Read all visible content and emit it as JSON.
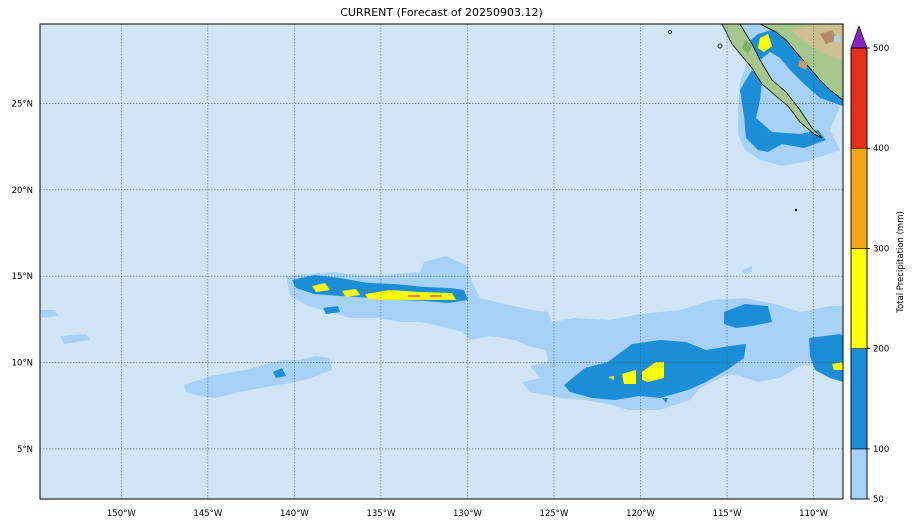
{
  "title": "CURRENT (Forecast of 20250903.12)",
  "map": {
    "projection": "cylindrical",
    "lon_range": [
      -154.7,
      -108.3
    ],
    "lat_range": [
      2.1,
      29.6
    ],
    "ocean_color": "#d0e6f6",
    "gridlines": "dotted",
    "lon_ticks": [
      {
        "value": -150,
        "label": "150°W"
      },
      {
        "value": -145,
        "label": "145°W"
      },
      {
        "value": -140,
        "label": "140°W"
      },
      {
        "value": -135,
        "label": "135°W"
      },
      {
        "value": -130,
        "label": "130°W"
      },
      {
        "value": -125,
        "label": "125°W"
      },
      {
        "value": -120,
        "label": "120°W"
      },
      {
        "value": -115,
        "label": "115°W"
      },
      {
        "value": -110,
        "label": "110°W"
      }
    ],
    "lat_ticks": [
      {
        "value": 25,
        "label": "25°N"
      },
      {
        "value": 20,
        "label": "20°N"
      },
      {
        "value": 15,
        "label": "15°N"
      },
      {
        "value": 10,
        "label": "10°N"
      },
      {
        "value": 5,
        "label": "5°N"
      }
    ],
    "features": [
      {
        "name": "Baja California / Mexico",
        "type": "land",
        "color": "#a5c98d"
      },
      {
        "name": "Hawaiian-to-eastern Pacific rain band",
        "type": "precipitation",
        "color": "#1a8fd8"
      }
    ]
  },
  "colorbar": {
    "label": "Total Precipitation (mm)",
    "extend": "max",
    "extend_color": "#8a1fc4",
    "ticks": [
      50,
      100,
      200,
      300,
      400,
      500
    ],
    "levels": [
      {
        "from": 50,
        "to": 100,
        "color": "#a8d1f7"
      },
      {
        "from": 100,
        "to": 200,
        "color": "#1a8fd8"
      },
      {
        "from": 200,
        "to": 300,
        "color": "#ffff00"
      },
      {
        "from": 300,
        "to": 400,
        "color": "#f5a519"
      },
      {
        "from": 400,
        "to": 500,
        "color": "#e53018"
      }
    ]
  }
}
